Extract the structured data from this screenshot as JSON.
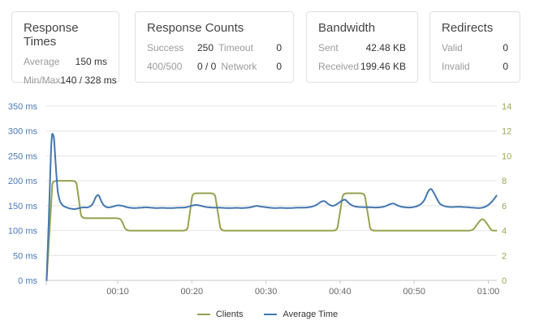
{
  "cards": [
    {
      "title": "Response Times",
      "rows": [
        {
          "label": "Average",
          "value": "150 ms"
        },
        {
          "label": "Min/Max",
          "value": "140 / 328 ms"
        }
      ]
    },
    {
      "title": "Response Counts",
      "rows": [
        {
          "label": "Success",
          "value": "250",
          "label2": "Timeout",
          "value2": "0"
        },
        {
          "label": "400/500",
          "value": "0 / 0",
          "label2": "Network",
          "value2": "0"
        }
      ]
    },
    {
      "title": "Bandwidth",
      "rows": [
        {
          "label": "Sent",
          "value": "42.48 KB"
        },
        {
          "label": "Received",
          "value": "199.46 KB"
        }
      ]
    },
    {
      "title": "Redirects",
      "rows": [
        {
          "label": "Valid",
          "value": "0"
        },
        {
          "label": "Invalid",
          "value": "0"
        }
      ]
    }
  ],
  "chart_data": {
    "type": "line",
    "title": "",
    "xlabel": "",
    "x_unit": "minutes",
    "x_range_minutes": [
      0,
      61.2
    ],
    "x_ticks": [
      {
        "t": 10,
        "label": "00:10"
      },
      {
        "t": 20,
        "label": "00:20"
      },
      {
        "t": 30,
        "label": "00:30"
      },
      {
        "t": 40,
        "label": "00:40"
      },
      {
        "t": 50,
        "label": "00:50"
      },
      {
        "t": 60,
        "label": "01:00"
      }
    ],
    "grid": true,
    "legend_position": "bottom",
    "left_axis": {
      "min": 0,
      "max": 350,
      "step": 50,
      "unit": "ms",
      "tick_labels_top_down": [
        "350 ms",
        "300 ms",
        "250 ms",
        "200 ms",
        "150 ms",
        "100 ms",
        "50 ms",
        "0 ms"
      ],
      "text_color": "#4a79b8"
    },
    "right_axis": {
      "min": 0,
      "max": 14,
      "step": 2,
      "tick_labels_top_down": [
        "14",
        "12",
        "10",
        "8",
        "6",
        "4",
        "2",
        "0"
      ],
      "text_color": "#9aa758"
    },
    "series": [
      {
        "name": "Clients",
        "axis": "right",
        "color": "#95a24f",
        "points": [
          [
            0.4,
            0
          ],
          [
            1.2,
            8
          ],
          [
            4.4,
            8
          ],
          [
            5.1,
            5
          ],
          [
            10.4,
            5
          ],
          [
            11.1,
            4
          ],
          [
            19.4,
            4
          ],
          [
            20.1,
            7
          ],
          [
            23.1,
            7
          ],
          [
            23.9,
            4
          ],
          [
            39.6,
            4
          ],
          [
            40.4,
            7
          ],
          [
            43.3,
            7
          ],
          [
            44.1,
            4
          ],
          [
            57.9,
            4
          ],
          [
            58.6,
            4.6
          ],
          [
            59.2,
            5
          ],
          [
            59.8,
            4.6
          ],
          [
            60.4,
            4
          ],
          [
            61.1,
            4
          ]
        ]
      },
      {
        "name": "Average Time",
        "axis": "left",
        "color": "#4377af",
        "points": [
          [
            0.4,
            0
          ],
          [
            0.7,
            120
          ],
          [
            1.0,
            262
          ],
          [
            1.15,
            297
          ],
          [
            1.4,
            288
          ],
          [
            1.65,
            228
          ],
          [
            1.9,
            178
          ],
          [
            2.2,
            158
          ],
          [
            2.6,
            150
          ],
          [
            3.0,
            147
          ],
          [
            3.6,
            144
          ],
          [
            4.2,
            143
          ],
          [
            4.8,
            145
          ],
          [
            5.4,
            147
          ],
          [
            6.0,
            146
          ],
          [
            6.6,
            152
          ],
          [
            7.1,
            170
          ],
          [
            7.45,
            172
          ],
          [
            7.8,
            158
          ],
          [
            8.2,
            149
          ],
          [
            8.7,
            146
          ],
          [
            9.3,
            148
          ],
          [
            10.0,
            151
          ],
          [
            10.6,
            150
          ],
          [
            11.2,
            147
          ],
          [
            12,
            145
          ],
          [
            13,
            146
          ],
          [
            14,
            147
          ],
          [
            15,
            145
          ],
          [
            16,
            146
          ],
          [
            17,
            145
          ],
          [
            18,
            146
          ],
          [
            19,
            146
          ],
          [
            19.8,
            149
          ],
          [
            20.5,
            152
          ],
          [
            21.2,
            150
          ],
          [
            22,
            147
          ],
          [
            23,
            146
          ],
          [
            24,
            146
          ],
          [
            25,
            145
          ],
          [
            26,
            146
          ],
          [
            27,
            145
          ],
          [
            28,
            147
          ],
          [
            28.7,
            150
          ],
          [
            29.4,
            148
          ],
          [
            30,
            147
          ],
          [
            31,
            145
          ],
          [
            32,
            146
          ],
          [
            33,
            145
          ],
          [
            34,
            146
          ],
          [
            35,
            146
          ],
          [
            36,
            147
          ],
          [
            36.8,
            151
          ],
          [
            37.4,
            158
          ],
          [
            37.9,
            160
          ],
          [
            38.4,
            153
          ],
          [
            39,
            149
          ],
          [
            39.6,
            153
          ],
          [
            40.2,
            160
          ],
          [
            40.7,
            163
          ],
          [
            41.3,
            153
          ],
          [
            42,
            148
          ],
          [
            43,
            147
          ],
          [
            44,
            147
          ],
          [
            45,
            146
          ],
          [
            46,
            148
          ],
          [
            46.7,
            153
          ],
          [
            47.2,
            155
          ],
          [
            47.8,
            150
          ],
          [
            48.5,
            147
          ],
          [
            49.5,
            146
          ],
          [
            50.5,
            149
          ],
          [
            51.3,
            158
          ],
          [
            51.9,
            180
          ],
          [
            52.3,
            185
          ],
          [
            52.8,
            172
          ],
          [
            53.4,
            154
          ],
          [
            54,
            149
          ],
          [
            55,
            147
          ],
          [
            56,
            148
          ],
          [
            57,
            147
          ],
          [
            58,
            146
          ],
          [
            59,
            145
          ],
          [
            59.8,
            149
          ],
          [
            60.5,
            158
          ],
          [
            61.1,
            170
          ]
        ]
      }
    ],
    "legend": [
      "Clients",
      "Average Time"
    ]
  },
  "colors": {
    "card_border": "#e0e0e0",
    "title_text": "#444444",
    "label_text": "#9b9b9b",
    "value_text": "#333333",
    "grid": "#e4e4e4",
    "axis_baseline": "#c8c8c8",
    "x_axis_text": "#666666"
  }
}
